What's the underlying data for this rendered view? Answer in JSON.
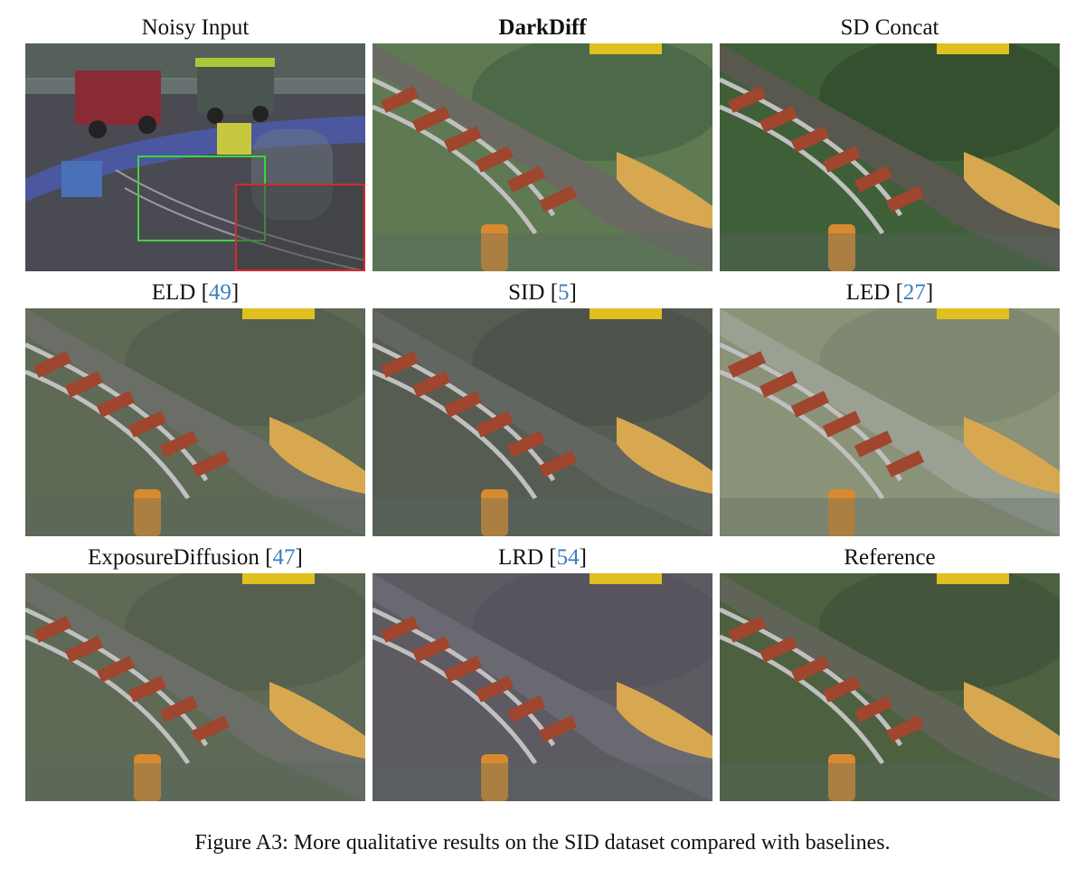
{
  "panels": [
    {
      "label": "Noisy Input",
      "cite": "",
      "bold": false,
      "tone": "noisy"
    },
    {
      "label": "DarkDiff",
      "cite": "",
      "bold": true,
      "tone": "green"
    },
    {
      "label": "SD Concat",
      "cite": "",
      "bold": false,
      "tone": "greendark"
    },
    {
      "label": "ELD ",
      "cite": "49",
      "bold": false,
      "tone": "olive"
    },
    {
      "label": "SID ",
      "cite": "5",
      "bold": false,
      "tone": "olivedark"
    },
    {
      "label": "LED ",
      "cite": "27",
      "bold": false,
      "tone": "bright"
    },
    {
      "label": "ExposureDiffusion ",
      "cite": "47",
      "bold": false,
      "tone": "olive"
    },
    {
      "label": "LRD ",
      "cite": "54",
      "bold": false,
      "tone": "purple"
    },
    {
      "label": "Reference",
      "cite": "",
      "bold": false,
      "tone": "ref"
    }
  ],
  "caption": "Figure A3: More qualitative results on the SID dataset compared with baselines.",
  "colors": {
    "citation": "#3b7dbd",
    "crop_box_green": "#3fd43f",
    "crop_box_red": "#d42a2a"
  }
}
